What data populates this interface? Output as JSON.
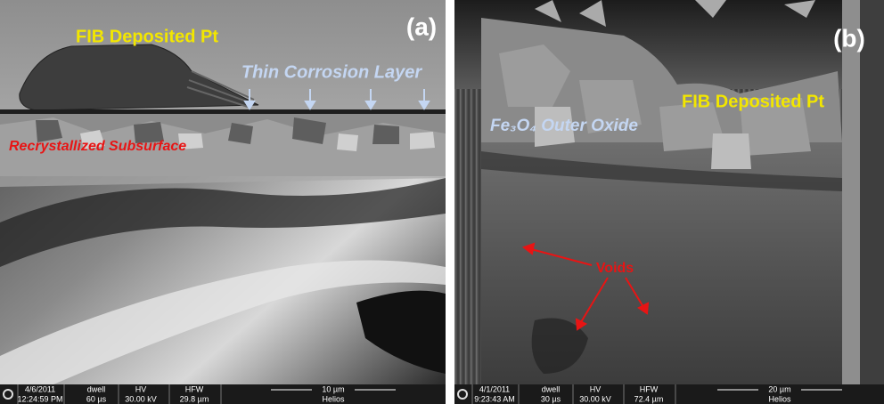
{
  "panels": [
    {
      "label": "(a)",
      "annotations": {
        "pt": "FIB Deposited Pt",
        "layer": "Thin Corrosion Layer",
        "subsurface": "Recrystallized Subsurface"
      },
      "info": {
        "date": "4/6/2011",
        "time": "12:24:59 PM",
        "dwell": "dwell",
        "dwell_value": "60 µs",
        "hv": "HV",
        "hv_value": "30.00 kV",
        "hfw": "HFW",
        "hfw_value": "29.8 µm",
        "scale": "10 µm",
        "instrument": "Helios"
      }
    },
    {
      "label": "(b)",
      "annotations": {
        "pt": "FIB Deposited Pt",
        "oxide": "Fe₃O₄ Outer Oxide",
        "voids": "Voids"
      },
      "info": {
        "date": "4/1/2011",
        "time": "9:23:43 AM",
        "dwell": "dwell",
        "dwell_value": "30 µs",
        "hv": "HV",
        "hv_value": "30.00 kV",
        "hfw": "HFW",
        "hfw_value": "72.4 µm",
        "scale": "20 µm",
        "instrument": "Helios"
      }
    }
  ]
}
